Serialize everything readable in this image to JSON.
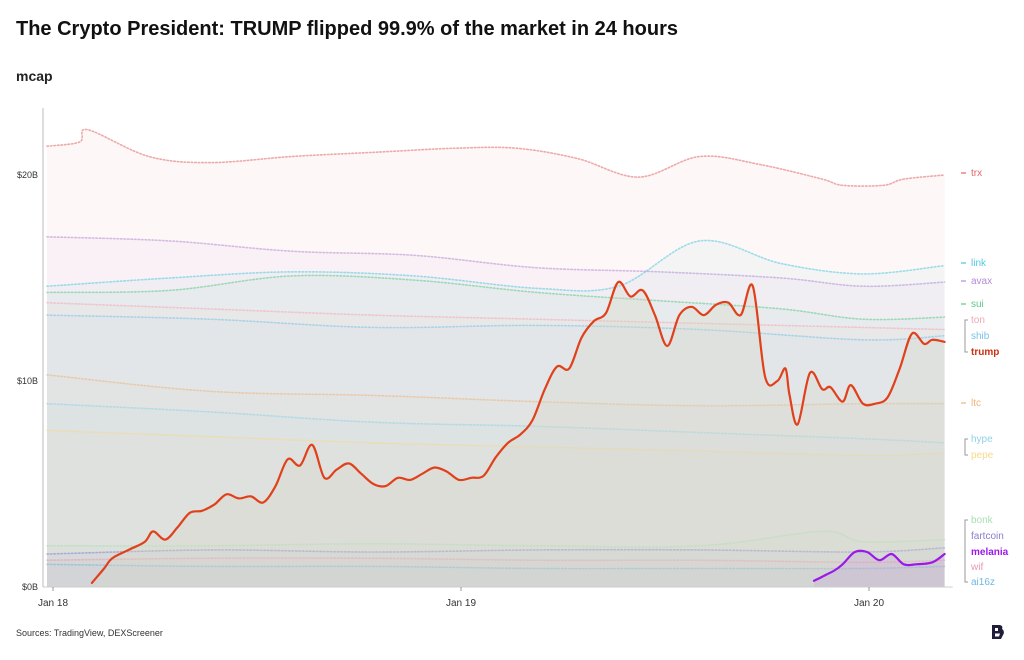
{
  "page": {
    "title": "The Crypto President: TRUMP flipped 99.9% of the market in 24 hours",
    "source": "Sources: TradingView, DEXScreener"
  },
  "brand_logo": {
    "icon": "brand-logo-icon",
    "color": "#1f1d3a"
  },
  "chart_data": {
    "type": "line",
    "title": "The Crypto President: TRUMP flipped 99.9% of the market in 24 hours",
    "ylabel": "mcap",
    "xlabel": "",
    "x_ticks": [
      "Jan 18",
      "Jan 19",
      "Jan 20"
    ],
    "y_ticks": [
      "$0B",
      "$10B",
      "$20B"
    ],
    "x_unit": "days since Jan 18 00:00",
    "ylim": [
      0,
      26.5
    ],
    "xlim": [
      0,
      2.22
    ],
    "grid": false,
    "legend_placement": "right",
    "series": [
      {
        "name": "trx",
        "color": "#e06666",
        "style": "background",
        "x": [
          0,
          0.08,
          0.1,
          0.25,
          0.4,
          0.6,
          0.8,
          1.0,
          1.15,
          1.3,
          1.45,
          1.6,
          1.75,
          1.9,
          1.95,
          2.05,
          2.1,
          2.2
        ],
        "values": [
          21.4,
          21.6,
          22.2,
          20.9,
          20.6,
          20.9,
          21.1,
          21.3,
          21.3,
          20.8,
          19.9,
          20.9,
          20.5,
          19.8,
          19.5,
          19.5,
          19.8,
          20.0
        ]
      },
      {
        "name": "link",
        "color": "#4ec8e0",
        "style": "background",
        "x": [
          0,
          0.3,
          0.6,
          0.9,
          1.2,
          1.4,
          1.6,
          1.8,
          2.0,
          2.2
        ],
        "values": [
          14.6,
          15.0,
          15.3,
          15.1,
          14.5,
          14.6,
          16.8,
          15.7,
          15.2,
          15.6
        ]
      },
      {
        "name": "avax",
        "color": "#b48ad6",
        "style": "background",
        "x": [
          0,
          0.3,
          0.6,
          0.9,
          1.2,
          1.5,
          1.8,
          2.0,
          2.2
        ],
        "values": [
          17.0,
          16.8,
          16.3,
          16.1,
          15.5,
          15.3,
          15.0,
          14.6,
          14.8
        ]
      },
      {
        "name": "sui",
        "color": "#5cc98a",
        "style": "background",
        "x": [
          0,
          0.3,
          0.6,
          0.9,
          1.2,
          1.5,
          1.8,
          2.0,
          2.2
        ],
        "values": [
          14.3,
          14.4,
          15.1,
          14.9,
          14.3,
          13.9,
          13.5,
          13.0,
          13.1
        ]
      },
      {
        "name": "ton",
        "color": "#f2a7b5",
        "style": "background",
        "x": [
          0,
          0.4,
          0.8,
          1.2,
          1.6,
          2.0,
          2.2
        ],
        "values": [
          13.8,
          13.5,
          13.2,
          13.0,
          12.8,
          12.6,
          12.5
        ]
      },
      {
        "name": "shib",
        "color": "#7cc1e8",
        "style": "background",
        "x": [
          0,
          0.4,
          0.8,
          1.2,
          1.6,
          2.0,
          2.2
        ],
        "values": [
          13.2,
          13.0,
          12.6,
          12.7,
          12.5,
          12.0,
          12.2
        ]
      },
      {
        "name": "trump",
        "color": "#e0401a",
        "style": "primary",
        "x": [
          0.11,
          0.14,
          0.16,
          0.2,
          0.24,
          0.26,
          0.29,
          0.32,
          0.35,
          0.38,
          0.41,
          0.44,
          0.47,
          0.5,
          0.53,
          0.56,
          0.59,
          0.62,
          0.65,
          0.68,
          0.71,
          0.74,
          0.77,
          0.8,
          0.83,
          0.86,
          0.89,
          0.92,
          0.95,
          0.98,
          1.01,
          1.04,
          1.07,
          1.1,
          1.13,
          1.16,
          1.19,
          1.22,
          1.25,
          1.28,
          1.31,
          1.34,
          1.37,
          1.4,
          1.43,
          1.46,
          1.49,
          1.52,
          1.55,
          1.58,
          1.61,
          1.64,
          1.67,
          1.7,
          1.73,
          1.76,
          1.79,
          1.81,
          1.82,
          1.84,
          1.87,
          1.9,
          1.92,
          1.95,
          1.97,
          2.0,
          2.03,
          2.06,
          2.09,
          2.12,
          2.15,
          2.17,
          2.2
        ],
        "values": [
          0.2,
          0.9,
          1.4,
          1.8,
          2.2,
          2.7,
          2.3,
          2.9,
          3.6,
          3.7,
          4.0,
          4.5,
          4.3,
          4.4,
          4.1,
          4.9,
          6.2,
          5.9,
          6.9,
          5.3,
          5.7,
          6.0,
          5.5,
          5.0,
          4.9,
          5.3,
          5.2,
          5.5,
          5.8,
          5.6,
          5.2,
          5.3,
          5.4,
          6.3,
          7.0,
          7.4,
          8.1,
          9.6,
          10.7,
          10.6,
          12.1,
          12.9,
          13.3,
          14.8,
          14.1,
          14.4,
          13.2,
          11.7,
          13.2,
          13.6,
          13.2,
          13.7,
          13.8,
          13.2,
          14.6,
          10.2,
          10.0,
          10.6,
          9.3,
          7.9,
          10.4,
          9.6,
          9.7,
          9.0,
          9.8,
          8.9,
          8.9,
          9.2,
          10.6,
          12.3,
          11.8,
          12.0,
          11.9
        ]
      },
      {
        "name": "ltc",
        "color": "#f0b27a",
        "style": "background",
        "x": [
          0,
          0.4,
          0.8,
          1.2,
          1.6,
          2.0,
          2.2
        ],
        "values": [
          10.3,
          9.5,
          9.3,
          9.0,
          8.8,
          8.9,
          8.9
        ]
      },
      {
        "name": "hype",
        "color": "#8fd3e8",
        "style": "background",
        "x": [
          0,
          0.4,
          0.8,
          1.2,
          1.6,
          2.0,
          2.2
        ],
        "values": [
          8.9,
          8.5,
          8.0,
          7.8,
          7.5,
          7.2,
          7.0
        ]
      },
      {
        "name": "pepe",
        "color": "#f7d98a",
        "style": "background",
        "x": [
          0,
          0.4,
          0.8,
          1.2,
          1.6,
          2.0,
          2.2
        ],
        "values": [
          7.6,
          7.3,
          7.0,
          6.8,
          6.6,
          6.4,
          6.5
        ]
      },
      {
        "name": "bonk",
        "color": "#a8e0b0",
        "style": "background",
        "x": [
          0,
          0.4,
          0.8,
          1.2,
          1.6,
          1.9,
          2.0,
          2.2
        ],
        "values": [
          2.0,
          2.0,
          2.1,
          2.0,
          2.0,
          2.7,
          2.2,
          2.3
        ]
      },
      {
        "name": "fartcoin",
        "color": "#8a7fcf",
        "style": "background",
        "x": [
          0,
          0.4,
          0.8,
          1.2,
          1.6,
          2.0,
          2.2
        ],
        "values": [
          1.6,
          1.8,
          1.7,
          1.8,
          1.8,
          1.7,
          1.9
        ]
      },
      {
        "name": "melania",
        "color": "#9b19e8",
        "style": "secondary",
        "x": [
          1.88,
          1.91,
          1.93,
          1.95,
          1.98,
          2.01,
          2.04,
          2.07,
          2.1,
          2.13,
          2.17,
          2.2
        ],
        "values": [
          0.3,
          0.6,
          0.8,
          1.1,
          1.7,
          1.7,
          1.3,
          1.6,
          1.1,
          1.1,
          1.2,
          1.6
        ]
      },
      {
        "name": "wif",
        "color": "#e79ab0",
        "style": "background",
        "x": [
          0,
          0.4,
          0.8,
          1.2,
          1.6,
          2.0,
          2.2
        ],
        "values": [
          1.3,
          1.4,
          1.4,
          1.3,
          1.3,
          1.2,
          1.3
        ]
      },
      {
        "name": "ai16z",
        "color": "#6fb8e0",
        "style": "background",
        "x": [
          0,
          0.4,
          0.8,
          1.2,
          1.6,
          2.0,
          2.2
        ],
        "values": [
          1.1,
          1.0,
          1.0,
          0.9,
          0.9,
          0.9,
          1.0
        ]
      }
    ],
    "legend": [
      {
        "name": "trx",
        "color": "#e06666",
        "bold": false
      },
      {
        "name": "link",
        "color": "#4ec8e0",
        "bold": false
      },
      {
        "name": "avax",
        "color": "#b48ad6",
        "bold": false
      },
      {
        "name": "sui",
        "color": "#5cc98a",
        "bold": false
      },
      {
        "name": "ton",
        "color": "#f2a7b5",
        "bold": false
      },
      {
        "name": "shib",
        "color": "#7cc1e8",
        "bold": false
      },
      {
        "name": "trump",
        "color": "#c8300f",
        "bold": true
      },
      {
        "name": "ltc",
        "color": "#f0b27a",
        "bold": false
      },
      {
        "name": "hype",
        "color": "#8fd3e8",
        "bold": false
      },
      {
        "name": "pepe",
        "color": "#f7d98a",
        "bold": false
      },
      {
        "name": "bonk",
        "color": "#a8e0b0",
        "bold": false
      },
      {
        "name": "fartcoin",
        "color": "#8a7fcf",
        "bold": false
      },
      {
        "name": "melania",
        "color": "#9b19e8",
        "bold": true
      },
      {
        "name": "wif",
        "color": "#e79ab0",
        "bold": false
      },
      {
        "name": "ai16z",
        "color": "#6fb8e0",
        "bold": false
      }
    ]
  }
}
